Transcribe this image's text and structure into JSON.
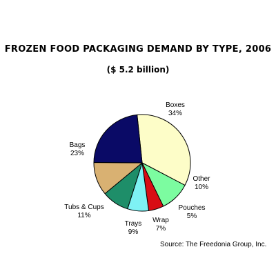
{
  "chart_data": {
    "type": "pie",
    "title": "FROZEN FOOD PACKAGING DEMAND BY TYPE, 2006",
    "subtitle": "($ 5.2 billion)",
    "slices": [
      {
        "label": "Boxes",
        "value": 34,
        "value_label": "34%",
        "color": "#fdfdc8"
      },
      {
        "label": "Other",
        "value": 10,
        "value_label": "10%",
        "color": "#7cfca0"
      },
      {
        "label": "Pouches",
        "value": 5,
        "value_label": "5%",
        "color": "#d80d14"
      },
      {
        "label": "Wrap",
        "value": 7,
        "value_label": "7%",
        "color": "#7ef2f4"
      },
      {
        "label": "Trays",
        "value": 9,
        "value_label": "9%",
        "color": "#1e8e69"
      },
      {
        "label": "Tubs & Cups",
        "value": 11,
        "value_label": "11%",
        "color": "#d9b172"
      },
      {
        "label": "Bags",
        "value": 23,
        "value_label": "23%",
        "color": "#0a0a66"
      }
    ],
    "source": "Source: The Freedonia Group, Inc."
  }
}
